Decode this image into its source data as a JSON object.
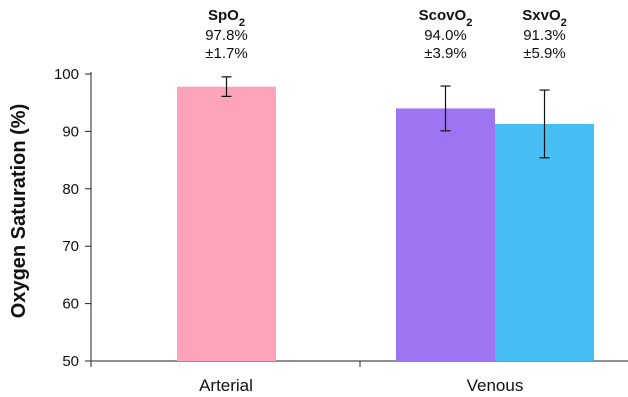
{
  "chart_data": {
    "type": "bar",
    "ylabel": "Oxygen Saturation (%)",
    "ylim": [
      50,
      100
    ],
    "yticks": [
      50,
      60,
      70,
      80,
      90,
      100
    ],
    "grid": false,
    "categories": [
      "Arterial",
      "Venous"
    ],
    "bars": [
      {
        "category": "Arterial",
        "name_base": "SpO",
        "name_sub": "2",
        "value": 97.8,
        "error": 1.7,
        "value_label": "97.8%",
        "error_label": "±1.7%",
        "color": "#FDA4BA"
      },
      {
        "category": "Venous",
        "name_base": "ScovO",
        "name_sub": "2",
        "value": 94.0,
        "error": 3.9,
        "value_label": "94.0%",
        "error_label": "±3.9%",
        "color": "#9D74F2"
      },
      {
        "category": "Venous",
        "name_base": "SxvO",
        "name_sub": "2",
        "value": 91.3,
        "error": 5.9,
        "value_label": "91.3%",
        "error_label": "±5.9%",
        "color": "#47BEF3"
      }
    ]
  }
}
